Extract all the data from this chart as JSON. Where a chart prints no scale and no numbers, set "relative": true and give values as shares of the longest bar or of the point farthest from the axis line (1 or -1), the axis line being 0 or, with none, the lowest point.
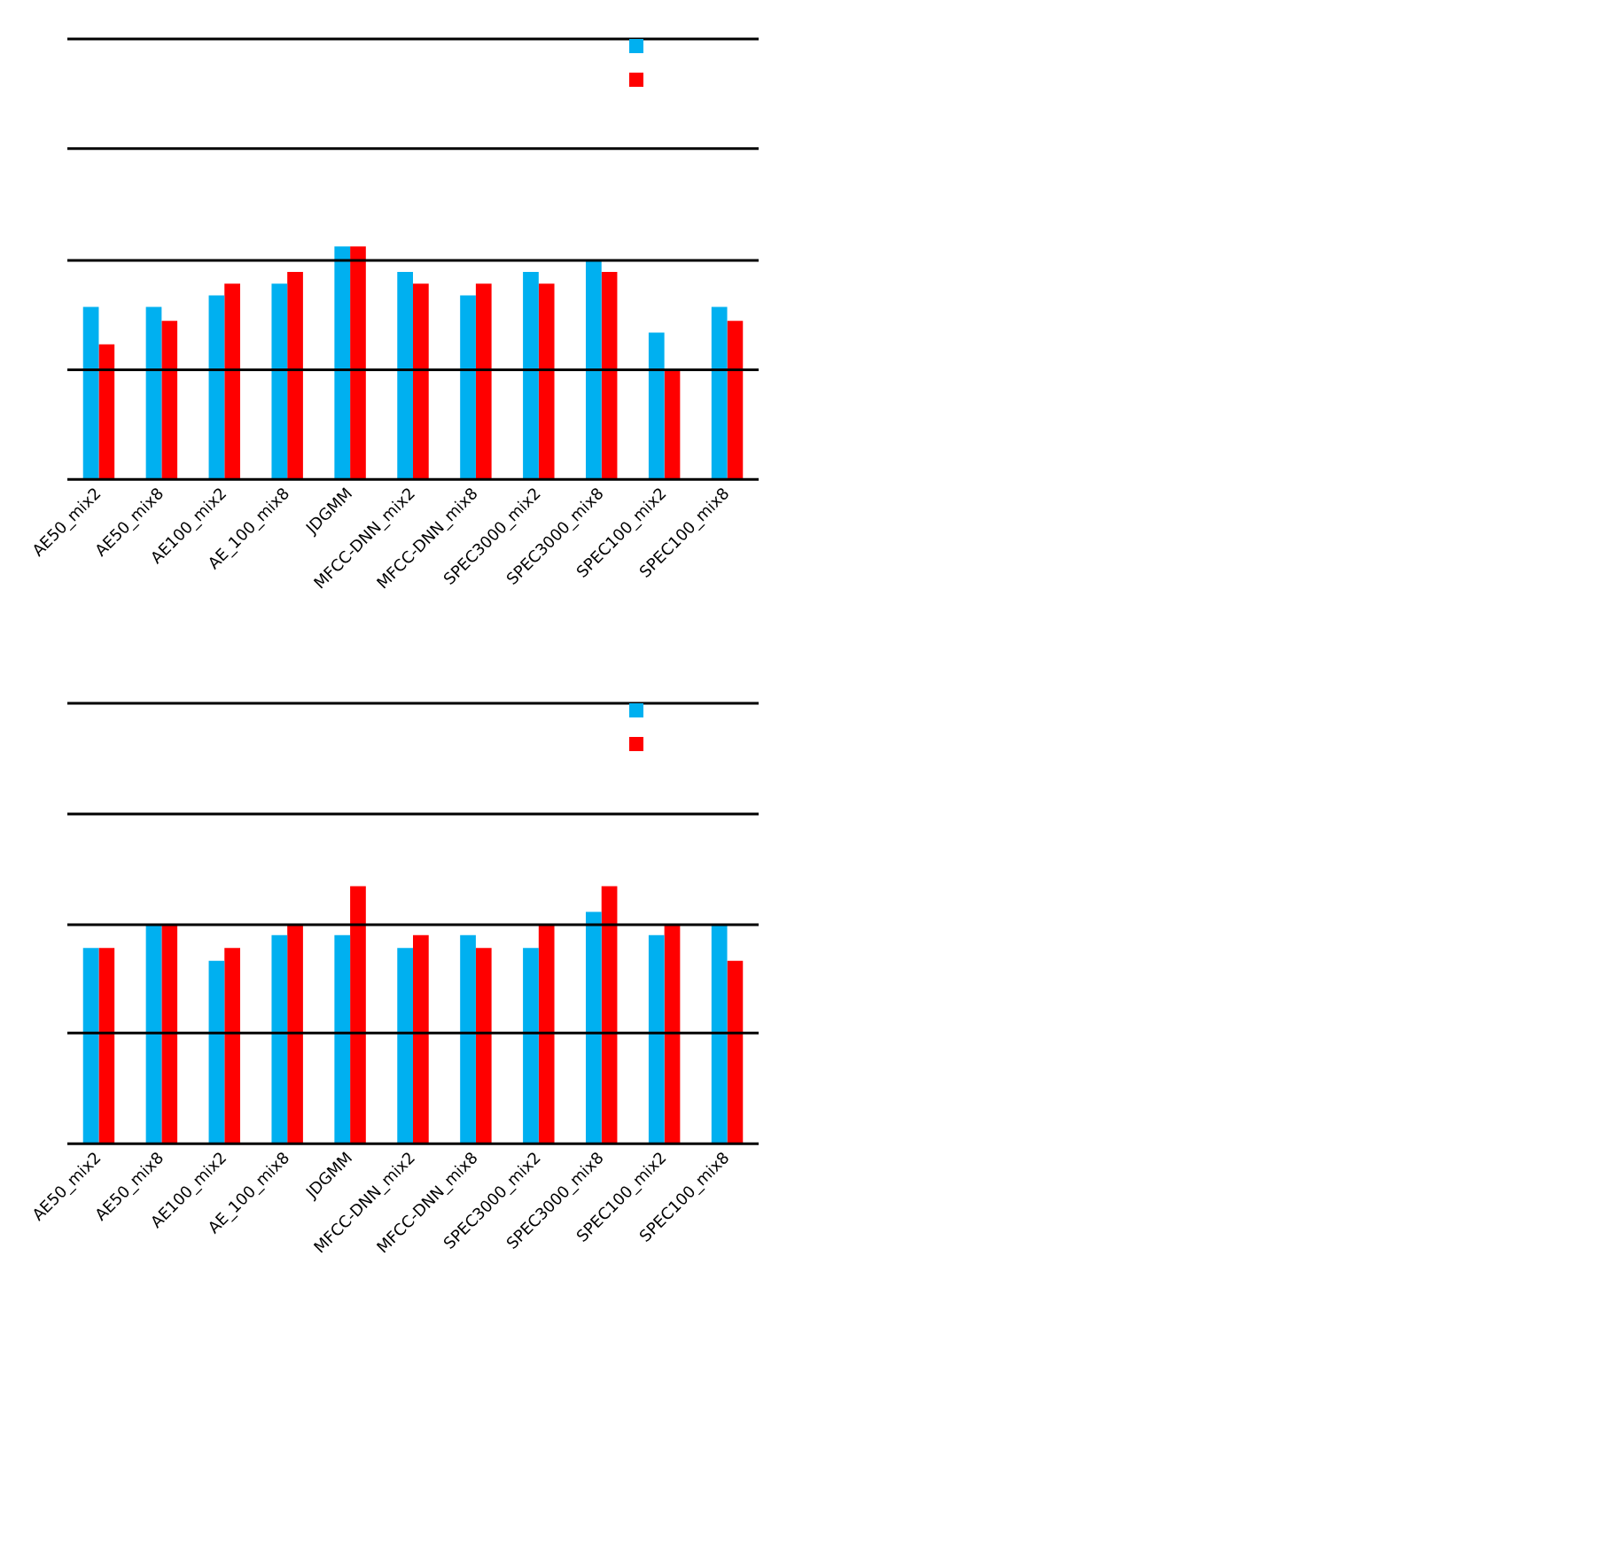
{
  "chart_data": [
    {
      "type": "bar",
      "relative": true,
      "categories": [
        "AE50_mix2",
        "AE50_mix8",
        "AE100_mix2",
        "AE_100_mix8",
        "JDGMM",
        "MFCC-DNN_mix2",
        "MFCC-DNN_mix8",
        "SPEC3000_mix2",
        "SPEC3000_mix8",
        "SPEC100_mix2",
        "SPEC100_mix8"
      ],
      "series": [
        {
          "color": "#00b0f0",
          "values": [
            0.74,
            0.74,
            0.79,
            0.84,
            1,
            0.89,
            0.79,
            0.89,
            0.94,
            0.63,
            0.74
          ]
        },
        {
          "color": "#ff0000",
          "values": [
            0.58,
            0.68,
            0.84,
            0.89,
            1,
            0.84,
            0.84,
            0.84,
            0.89,
            0.47,
            0.68
          ]
        }
      ],
      "ref_lines": [
        {
          "axis": "y",
          "value": 0.47,
          "color": "#000000"
        },
        {
          "axis": "y",
          "value": 0.94,
          "color": "#000000"
        },
        {
          "axis": "y",
          "value": 1.42,
          "color": "#000000"
        },
        {
          "axis": "y",
          "value": 1.89,
          "color": "#000000"
        }
      ]
    },
    {
      "type": "bar",
      "relative": true,
      "categories": [
        "AE50_mix2",
        "AE50_mix8",
        "AE100_mix2",
        "AE_100_mix8",
        "JDGMM",
        "MFCC-DNN_mix2",
        "MFCC-DNN_mix8",
        "SPEC3000_mix2",
        "SPEC3000_mix8",
        "SPEC100_mix2",
        "SPEC100_mix8"
      ],
      "series": [
        {
          "color": "#00b0f0",
          "values": [
            0.76,
            0.85,
            0.71,
            0.81,
            0.81,
            0.76,
            0.81,
            0.76,
            0.9,
            0.81,
            0.85
          ]
        },
        {
          "color": "#ff0000",
          "values": [
            0.76,
            0.85,
            0.76,
            0.85,
            1,
            0.81,
            0.76,
            0.85,
            1,
            0.85,
            0.71
          ]
        }
      ],
      "ref_lines": [
        {
          "axis": "y",
          "value": 0.43,
          "color": "#000000"
        },
        {
          "axis": "y",
          "value": 0.85,
          "color": "#000000"
        },
        {
          "axis": "y",
          "value": 1.28,
          "color": "#000000"
        },
        {
          "axis": "y",
          "value": 1.71,
          "color": "#000000"
        }
      ]
    }
  ]
}
